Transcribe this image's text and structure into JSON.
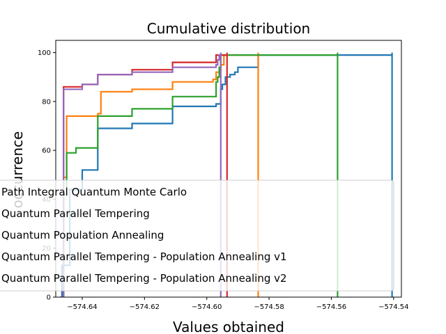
{
  "chart_data": {
    "type": "line",
    "step": true,
    "title": "Cumulative distribution",
    "xlabel": "Values obtained",
    "ylabel": "occurrence",
    "xlim": [
      -574.6485,
      -574.5375
    ],
    "ylim": [
      0,
      105
    ],
    "xticks": [
      -574.64,
      -574.62,
      -574.6,
      -574.58,
      -574.56,
      -574.54
    ],
    "xtick_labels": [
      "−574.64",
      "−574.62",
      "−574.60",
      "−574.58",
      "−574.56",
      "−574.54"
    ],
    "yticks": [
      0,
      20,
      40,
      60,
      80,
      100
    ],
    "ytick_labels": [
      "0",
      "20",
      "40",
      "60",
      "80",
      "100"
    ],
    "grid": false,
    "legend_placement": "lower-left",
    "series": [
      {
        "name": "Path Integral Quantum Monte Carlo",
        "color": "#1f77b4",
        "x": [
          -574.647,
          -574.6465,
          -574.644,
          -574.64,
          -574.635,
          -574.624,
          -574.611,
          -574.597,
          -574.5955,
          -574.595,
          -574.594,
          -574.5925,
          -574.591,
          -574.59,
          -574.589,
          -574.5835,
          -574.5405,
          -574.5405
        ],
        "y": [
          0,
          13,
          44,
          52,
          69,
          71,
          78,
          79,
          85,
          87,
          90,
          91,
          92,
          94,
          94,
          99,
          100,
          0
        ]
      },
      {
        "name": "Quantum Parallel Tempering",
        "color": "#ff7f0e",
        "x": [
          -574.6465,
          -574.646,
          -574.645,
          -574.635,
          -574.634,
          -574.624,
          -574.611,
          -574.598,
          -574.597,
          -574.5955,
          -574.5945,
          -574.5835,
          -574.5835
        ],
        "y": [
          0,
          49,
          74,
          75,
          84,
          85,
          88,
          89,
          92,
          95,
          99,
          100,
          0
        ]
      },
      {
        "name": "Quantum Population Annealing",
        "color": "#2ca02c",
        "x": [
          -574.6465,
          -574.646,
          -574.645,
          -574.642,
          -574.635,
          -574.624,
          -574.611,
          -574.597,
          -574.5965,
          -574.596,
          -574.5955,
          -574.558,
          -574.558
        ],
        "y": [
          0,
          42,
          59,
          61,
          74,
          77,
          82,
          88,
          90,
          94,
          99,
          100,
          0
        ]
      },
      {
        "name": "Quantum Parallel Tempering - Population Annealing v1",
        "color": "#d62728",
        "x": [
          -574.6465,
          -574.646,
          -574.64,
          -574.635,
          -574.624,
          -574.611,
          -574.597,
          -574.5935,
          -574.5935
        ],
        "y": [
          0,
          86,
          87,
          91,
          93,
          96,
          99,
          100,
          0
        ]
      },
      {
        "name": "Quantum Parallel Tempering - Population Annealing v2",
        "color": "#9467bd",
        "x": [
          -574.647,
          -574.646,
          -574.64,
          -574.635,
          -574.624,
          -574.611,
          -574.597,
          -574.5965,
          -574.596,
          -574.5955,
          -574.5955
        ],
        "y": [
          0,
          85,
          87,
          91,
          92,
          94,
          95,
          97,
          99,
          100,
          0
        ]
      }
    ]
  }
}
